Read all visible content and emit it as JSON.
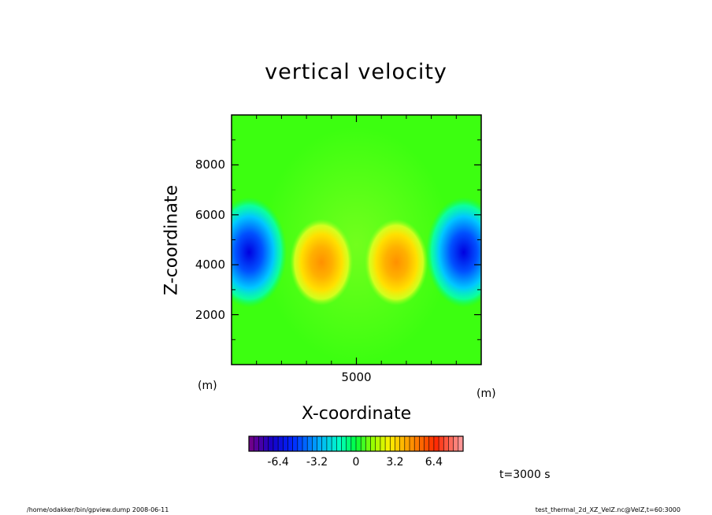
{
  "chart_data": {
    "type": "heatmap",
    "title": "vertical velocity",
    "xlabel": "X-coordinate",
    "ylabel": "Z-coordinate",
    "x_unit": "(m)",
    "y_unit": "(m)",
    "xlim": [
      0,
      10000
    ],
    "ylim": [
      0,
      10000
    ],
    "x_ticks": [
      "5000"
    ],
    "y_ticks": [
      "2000",
      "4000",
      "6000",
      "8000"
    ],
    "colorbar": {
      "min": -8.8,
      "max": 8.8,
      "step": 0.4,
      "tick_labels": [
        "-6.4",
        "-3.2",
        "0",
        "3.2",
        "6.4"
      ],
      "tick_values": [
        -6.4,
        -3.2,
        0,
        3.2,
        6.4
      ]
    },
    "features": [
      {
        "x": 700,
        "z": 4500,
        "value": -7.0,
        "kind": "downdraft"
      },
      {
        "x": 9300,
        "z": 4500,
        "value": -7.0,
        "kind": "downdraft"
      },
      {
        "x": 3600,
        "z": 4100,
        "value": 4.2,
        "kind": "updraft"
      },
      {
        "x": 6600,
        "z": 4100,
        "value": 4.2,
        "kind": "updraft"
      }
    ],
    "grid": false
  },
  "time_label": "t=3000 s",
  "footer": {
    "left": "/home/odakker/bin/gpview.dump  2008-06-11",
    "right": "test_thermal_2d_XZ_VelZ.nc@VelZ,t=60:3000"
  }
}
